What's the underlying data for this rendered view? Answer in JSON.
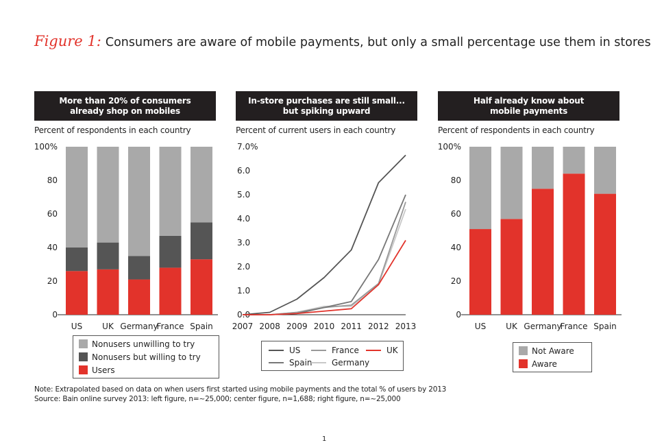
{
  "figure": {
    "label": "Figure 1:",
    "title": "Consumers are aware of mobile payments, but only a small percentage use them in stores"
  },
  "colors": {
    "red": "#e2332b",
    "dark": "#555555",
    "light": "#a9a9a9",
    "head": "#231f20"
  },
  "left": {
    "heading1": "More than 20% of consumers",
    "heading2": "already shop on mobiles",
    "subtitle": "Percent of respondents in each country",
    "legend": [
      "Nonusers unwilling to try",
      "Nonusers but willing to try",
      "Users"
    ]
  },
  "center": {
    "heading1": "In-store purchases are still small...",
    "heading2": "but spiking upward",
    "subtitle": "Percent of current users in each country",
    "legend": [
      "US",
      "France",
      "UK",
      "Spain",
      "Germany"
    ]
  },
  "right": {
    "heading1": "Half already know about",
    "heading2": "mobile payments",
    "subtitle": "Percent of respondents in each country",
    "legend": [
      "Not Aware",
      "Aware"
    ]
  },
  "note": "Note: Extrapolated based on data on when users first started using mobile payments and the total % of users by 2013",
  "source": "Source: Bain online survey 2013: left figure, n=~25,000; center figure, n=1,688; right figure, n=~25,000",
  "page_number": "1",
  "chart_data": [
    {
      "type": "bar",
      "stacked": true,
      "title": "More than 20% of consumers already shop on mobiles",
      "ylabel": "Percent of respondents in each country",
      "categories": [
        "US",
        "UK",
        "Germany",
        "France",
        "Spain"
      ],
      "ylim": [
        0,
        100
      ],
      "yticks": [
        "0",
        "20",
        "40",
        "60",
        "80",
        "100%"
      ],
      "series": [
        {
          "name": "Users",
          "color": "#e2332b",
          "values": [
            26,
            27,
            21,
            28,
            33
          ]
        },
        {
          "name": "Nonusers but willing to try",
          "color": "#555555",
          "values": [
            14,
            16,
            14,
            19,
            22
          ]
        },
        {
          "name": "Nonusers unwilling to try",
          "color": "#a9a9a9",
          "values": [
            60,
            57,
            65,
            53,
            45
          ]
        }
      ]
    },
    {
      "type": "line",
      "title": "In-store purchases are still small... but spiking upward",
      "ylabel": "Percent of current users in each country",
      "x": [
        "2007",
        "2008",
        "2009",
        "2010",
        "2011",
        "2012",
        "2013"
      ],
      "ylim": [
        0,
        7
      ],
      "yticks": [
        "0.0",
        "1.0",
        "2.0",
        "3.0",
        "4.0",
        "5.0",
        "6.0",
        "7.0%"
      ],
      "series": [
        {
          "name": "US",
          "color": "#555555",
          "values": [
            0.0,
            0.1,
            0.65,
            1.55,
            2.7,
            5.5,
            6.65
          ]
        },
        {
          "name": "France",
          "color": "#999999",
          "values": [
            0.0,
            0.0,
            0.1,
            0.3,
            0.4,
            1.3,
            4.7
          ]
        },
        {
          "name": "UK",
          "color": "#e2332b",
          "values": [
            0.0,
            0.0,
            0.05,
            0.15,
            0.25,
            1.25,
            3.1
          ]
        },
        {
          "name": "Spain",
          "color": "#777777",
          "values": [
            0.0,
            0.0,
            0.05,
            0.3,
            0.55,
            2.3,
            5.0
          ]
        },
        {
          "name": "Germany",
          "color": "#c8c8c8",
          "values": [
            0.0,
            0.0,
            0.1,
            0.35,
            0.35,
            1.25,
            4.4
          ]
        }
      ]
    },
    {
      "type": "bar",
      "stacked": true,
      "title": "Half already know about mobile payments",
      "ylabel": "Percent of respondents in each country",
      "categories": [
        "US",
        "UK",
        "Germany",
        "France",
        "Spain"
      ],
      "ylim": [
        0,
        100
      ],
      "yticks": [
        "0",
        "20",
        "40",
        "60",
        "80",
        "100%"
      ],
      "series": [
        {
          "name": "Aware",
          "color": "#e2332b",
          "values": [
            51,
            57,
            75,
            84,
            72
          ]
        },
        {
          "name": "Not Aware",
          "color": "#a9a9a9",
          "values": [
            49,
            43,
            25,
            16,
            28
          ]
        }
      ]
    }
  ]
}
